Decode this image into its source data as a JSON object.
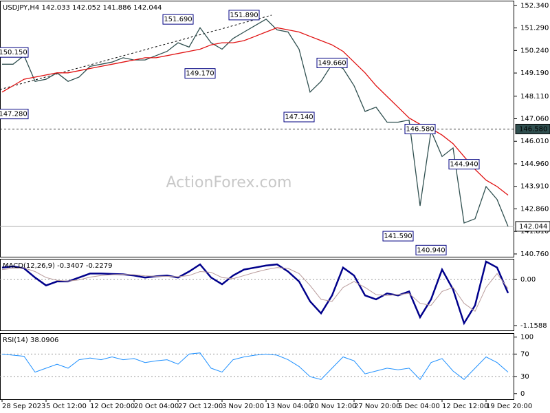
{
  "chart_data": [
    {
      "type": "line",
      "title": "USDJPY,H4  142.033 142.052 141.886 142.044",
      "watermark": "ActionForex.com",
      "ylim": [
        140.63,
        152.56
      ],
      "yticks": [
        {
          "value": 152.34,
          "label": "152.340"
        },
        {
          "value": 151.29,
          "label": "151.290"
        },
        {
          "value": 150.24,
          "label": "150.240"
        },
        {
          "value": 149.19,
          "label": "149.190"
        },
        {
          "value": 148.11,
          "label": "148.110"
        },
        {
          "value": 147.06,
          "label": "147.060"
        },
        {
          "value": 146.01,
          "label": "146.010"
        },
        {
          "value": 144.96,
          "label": "144.960"
        },
        {
          "value": 143.91,
          "label": "143.910"
        },
        {
          "value": 142.86,
          "label": "142.860"
        },
        {
          "value": 141.81,
          "label": "141.810"
        },
        {
          "value": 140.76,
          "label": "140.760"
        }
      ],
      "series": [
        {
          "color": "#2f4f4f",
          "values": [
            149.6,
            149.6,
            150.0,
            148.8,
            148.9,
            149.2,
            148.8,
            149.0,
            149.5,
            149.6,
            149.7,
            149.9,
            149.8,
            149.8,
            150.0,
            150.2,
            150.6,
            150.4,
            151.3,
            150.6,
            150.3,
            150.8,
            151.1,
            151.4,
            151.7,
            151.2,
            151.1,
            150.3,
            148.3,
            148.8,
            149.6,
            149.4,
            148.6,
            147.4,
            147.6,
            146.9,
            146.9,
            147.0,
            143.0,
            146.5,
            145.3,
            145.7,
            142.2,
            142.4,
            143.9,
            143.3,
            142.04
          ]
        },
        {
          "color": "#e01010",
          "values": [
            148.3,
            148.6,
            148.9,
            149.0,
            149.1,
            149.2,
            149.2,
            149.3,
            149.4,
            149.5,
            149.6,
            149.7,
            149.8,
            149.9,
            149.9,
            150.0,
            150.1,
            150.2,
            150.3,
            150.5,
            150.6,
            150.6,
            150.7,
            150.9,
            151.1,
            151.3,
            151.2,
            151.1,
            150.9,
            150.7,
            150.5,
            150.2,
            149.7,
            149.2,
            148.6,
            148.1,
            147.6,
            147.1,
            146.8,
            146.6,
            146.3,
            145.9,
            145.3,
            144.7,
            144.2,
            143.9,
            143.5
          ]
        }
      ],
      "hlines": [
        {
          "value": 146.58,
          "label": "146.580",
          "style": "dashed"
        },
        {
          "value": 142.044,
          "label": "142.044",
          "style": "solid"
        }
      ],
      "annotations": [
        {
          "at": 1,
          "value": 150.15,
          "label": "150.150"
        },
        {
          "at": 1,
          "value": 147.28,
          "label": "147.280"
        },
        {
          "at": 16,
          "value": 151.69,
          "label": "151.690"
        },
        {
          "at": 18,
          "value": 149.17,
          "label": "149.170"
        },
        {
          "at": 22,
          "value": 151.89,
          "label": "151.890"
        },
        {
          "at": 27,
          "value": 147.14,
          "label": "147.140"
        },
        {
          "at": 30,
          "value": 149.66,
          "label": "149.660"
        },
        {
          "at": 38,
          "value": 146.58,
          "label": "146.580"
        },
        {
          "at": 42,
          "value": 144.94,
          "label": "144.940"
        },
        {
          "at": 36,
          "value": 141.59,
          "label": "141.590"
        },
        {
          "at": 39,
          "value": 140.94,
          "label": "140.940"
        }
      ]
    },
    {
      "type": "line",
      "title": "MACD(12,26,9) -0.3407 -0.2279",
      "ylim": [
        -1.28,
        0.52
      ],
      "yticks": [
        {
          "value": 0,
          "label": "0.00"
        },
        -1.1588
      ],
      "levels": [
        0
      ],
      "series": [
        {
          "color": "#00008b",
          "width": 2.5,
          "values": [
            0.3,
            0.33,
            0.28,
            0.05,
            -0.15,
            -0.05,
            -0.05,
            0.05,
            0.15,
            0.15,
            0.14,
            0.13,
            0.1,
            0.05,
            0.08,
            0.1,
            0.05,
            0.2,
            0.38,
            0.05,
            -0.12,
            0.1,
            0.25,
            0.3,
            0.35,
            0.38,
            0.2,
            -0.05,
            -0.55,
            -0.85,
            -0.4,
            0.3,
            0.1,
            -0.4,
            -0.5,
            -0.35,
            -0.4,
            -0.3,
            -0.95,
            -0.5,
            0.25,
            -0.25,
            -1.1,
            -0.65,
            0.45,
            0.3,
            -0.34
          ]
        },
        {
          "color": "#b89a9a",
          "width": 1,
          "values": [
            0.25,
            0.28,
            0.29,
            0.2,
            0.05,
            -0.02,
            -0.04,
            -0.01,
            0.06,
            0.1,
            0.12,
            0.13,
            0.12,
            0.09,
            0.08,
            0.08,
            0.07,
            0.1,
            0.2,
            0.18,
            0.05,
            0.02,
            0.1,
            0.18,
            0.25,
            0.3,
            0.28,
            0.15,
            -0.15,
            -0.5,
            -0.55,
            -0.2,
            -0.05,
            -0.2,
            -0.38,
            -0.4,
            -0.38,
            -0.35,
            -0.6,
            -0.65,
            -0.3,
            -0.2,
            -0.6,
            -0.8,
            -0.2,
            0.15,
            -0.23
          ]
        }
      ]
    },
    {
      "type": "line",
      "title": "RSI(14) 38.0906",
      "ylim": [
        -10,
        107
      ],
      "yticks": [
        100,
        70,
        30,
        0
      ],
      "levels": [
        70,
        30
      ],
      "categories": [
        "28 Sep 2023",
        null,
        null,
        null,
        "5 Oct 12:00",
        null,
        null,
        null,
        "12 Oct 20:00",
        null,
        null,
        null,
        "20 Oct 04:00",
        null,
        null,
        null,
        "27 Oct 12:00",
        null,
        null,
        null,
        "3 Nov 20:00",
        null,
        null,
        null,
        "13 Nov 04:00",
        null,
        null,
        null,
        "20 Nov 12:00",
        null,
        null,
        null,
        "27 Nov 20:00",
        null,
        null,
        null,
        "5 Dec 04:00",
        null,
        null,
        null,
        "12 Dec 12:00",
        null,
        null,
        null,
        "19 Dec 20:00",
        null,
        null
      ],
      "series": [
        {
          "color": "#1e90ff",
          "width": 1,
          "values": [
            70,
            68,
            66,
            38,
            45,
            52,
            45,
            60,
            63,
            60,
            65,
            60,
            62,
            55,
            58,
            60,
            52,
            70,
            72,
            45,
            38,
            60,
            65,
            68,
            70,
            68,
            60,
            48,
            30,
            25,
            45,
            65,
            58,
            35,
            40,
            45,
            42,
            45,
            25,
            55,
            62,
            40,
            25,
            45,
            65,
            55,
            38
          ]
        }
      ]
    }
  ]
}
